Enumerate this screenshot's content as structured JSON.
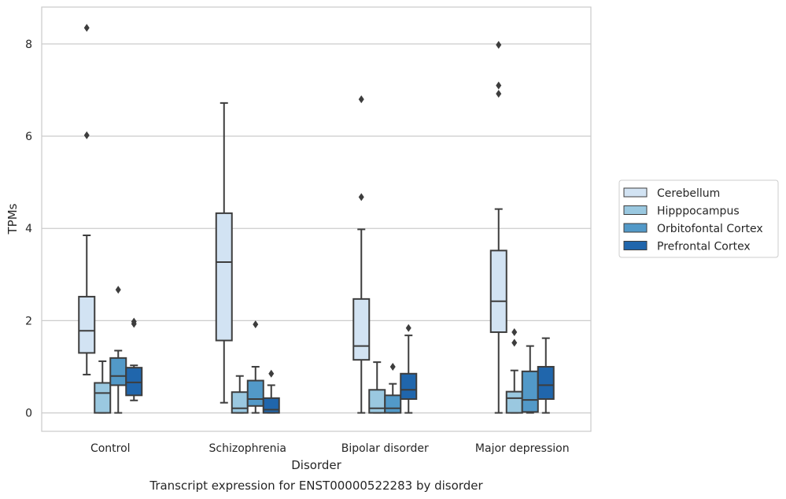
{
  "chart_data": {
    "type": "box",
    "caption": "Transcript expression for ENST00000522283 by disorder",
    "xlabel": "Disorder",
    "ylabel": "TPMs",
    "ylim": [
      -0.4,
      8.8
    ],
    "yticks": [
      0,
      2,
      4,
      6,
      8
    ],
    "grid": "horizontal",
    "legend_position": "right",
    "categories": [
      "Control",
      "Schizophrenia",
      "Bipolar disorder",
      "Major depression"
    ],
    "series": [
      {
        "name": "Cerebellum",
        "color": "#d2e3f3",
        "boxes": [
          {
            "whisker_low": 0.83,
            "q1": 1.3,
            "median": 1.78,
            "q3": 2.52,
            "whisker_high": 3.85,
            "outliers": [
              6.02,
              8.35
            ]
          },
          {
            "whisker_low": 0.22,
            "q1": 1.57,
            "median": 3.27,
            "q3": 4.33,
            "whisker_high": 6.72,
            "outliers": []
          },
          {
            "whisker_low": 0.0,
            "q1": 1.15,
            "median": 1.45,
            "q3": 2.47,
            "whisker_high": 3.98,
            "outliers": [
              4.68,
              6.8
            ]
          },
          {
            "whisker_low": 0.0,
            "q1": 1.75,
            "median": 2.42,
            "q3": 3.52,
            "whisker_high": 4.42,
            "outliers": [
              6.92,
              7.1,
              7.98
            ]
          }
        ]
      },
      {
        "name": "Hipppocampus",
        "color": "#9ac8e0",
        "boxes": [
          {
            "whisker_low": 0.0,
            "q1": 0.0,
            "median": 0.43,
            "q3": 0.65,
            "whisker_high": 1.12,
            "outliers": []
          },
          {
            "whisker_low": 0.0,
            "q1": 0.0,
            "median": 0.1,
            "q3": 0.45,
            "whisker_high": 0.8,
            "outliers": []
          },
          {
            "whisker_low": 0.0,
            "q1": 0.0,
            "median": 0.1,
            "q3": 0.5,
            "whisker_high": 1.1,
            "outliers": []
          },
          {
            "whisker_low": 0.0,
            "q1": 0.0,
            "median": 0.32,
            "q3": 0.46,
            "whisker_high": 0.92,
            "outliers": [
              1.52,
              1.75
            ]
          }
        ]
      },
      {
        "name": "Orbitofontal Cortex",
        "color": "#5299c8",
        "boxes": [
          {
            "whisker_low": 0.0,
            "q1": 0.6,
            "median": 0.8,
            "q3": 1.19,
            "whisker_high": 1.35,
            "outliers": [
              2.67
            ]
          },
          {
            "whisker_low": 0.0,
            "q1": 0.15,
            "median": 0.3,
            "q3": 0.7,
            "whisker_high": 1.0,
            "outliers": [
              1.92
            ]
          },
          {
            "whisker_low": 0.0,
            "q1": 0.0,
            "median": 0.1,
            "q3": 0.38,
            "whisker_high": 0.63,
            "outliers": [
              1.0
            ]
          },
          {
            "whisker_low": 0.0,
            "q1": 0.02,
            "median": 0.28,
            "q3": 0.9,
            "whisker_high": 1.45,
            "outliers": []
          }
        ]
      },
      {
        "name": "Prefrontal Cortex",
        "color": "#2066ac",
        "boxes": [
          {
            "whisker_low": 0.27,
            "q1": 0.38,
            "median": 0.66,
            "q3": 0.98,
            "whisker_high": 1.03,
            "outliers": [
              1.93,
              1.98
            ]
          },
          {
            "whisker_low": 0.0,
            "q1": 0.0,
            "median": 0.07,
            "q3": 0.32,
            "whisker_high": 0.6,
            "outliers": [
              0.85
            ]
          },
          {
            "whisker_low": 0.0,
            "q1": 0.3,
            "median": 0.5,
            "q3": 0.85,
            "whisker_high": 1.68,
            "outliers": [
              1.84
            ]
          },
          {
            "whisker_low": 0.0,
            "q1": 0.3,
            "median": 0.6,
            "q3": 1.0,
            "whisker_high": 1.62,
            "outliers": []
          }
        ]
      }
    ]
  }
}
